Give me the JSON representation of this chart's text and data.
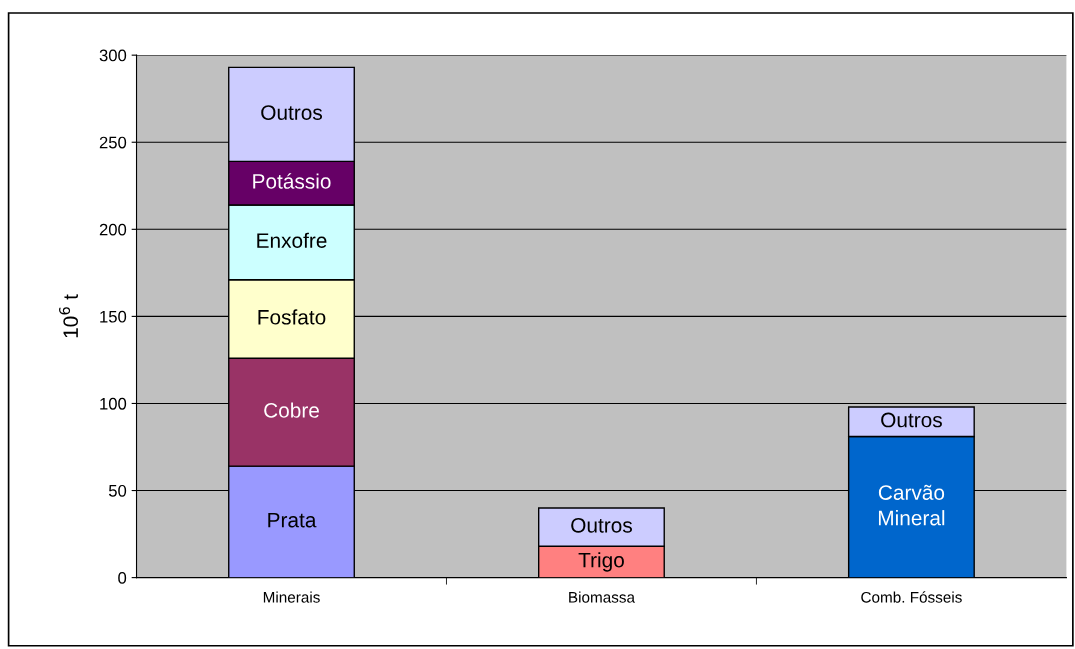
{
  "chart_data": {
    "type": "bar",
    "stacked": true,
    "ylabel": "10$^{6}$ t",
    "categories": [
      "Minerais",
      "Biomassa",
      "Comb. Fósseis"
    ],
    "series": [
      {
        "name": "Prata",
        "color": "#9999ff",
        "values": [
          64,
          null,
          null
        ]
      },
      {
        "name": "Trigo",
        "color": "#ff8080",
        "values": [
          null,
          18,
          null
        ]
      },
      {
        "name": "Carvão\nMineral",
        "color": "#0066cc",
        "values": [
          null,
          null,
          81
        ]
      },
      {
        "name": "Cobre",
        "color": "#993366",
        "values": [
          62,
          null,
          null
        ]
      },
      {
        "name": "Fosfato",
        "color": "#ffffcc",
        "values": [
          45,
          null,
          null
        ]
      },
      {
        "name": "Enxofre",
        "color": "#ccffff",
        "values": [
          43,
          null,
          null
        ]
      },
      {
        "name": "Potássio",
        "color": "#660066",
        "values": [
          25,
          null,
          null
        ]
      },
      {
        "name": "Outros",
        "color": "#ccccff",
        "values": [
          54,
          22,
          17
        ]
      }
    ],
    "ylim": [
      0,
      300
    ],
    "yticks": [
      0,
      50,
      100,
      150,
      200,
      250,
      300
    ],
    "grid": "y"
  }
}
